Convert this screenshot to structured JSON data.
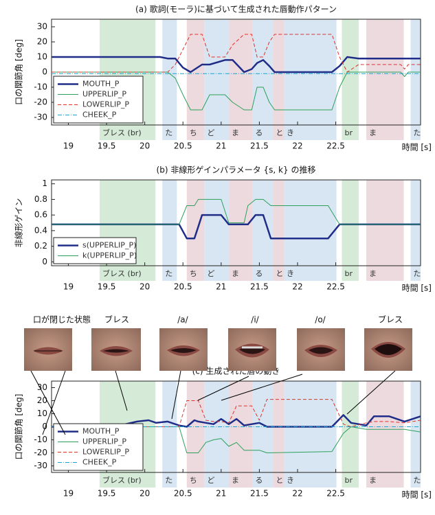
{
  "chart_data": [
    {
      "type": "line",
      "title": "(a) 歌詞(モーラ)に基づいて生成された唇動作パターン",
      "ylabel": "口の関節角 [deg]",
      "xlabel": "時間 [s]",
      "xlim": [
        18.78,
        23.61
      ],
      "ylim": [
        -35,
        35
      ],
      "xticks": [
        19,
        19.5,
        20,
        20.5,
        21,
        21.5,
        22,
        22.5
      ],
      "yticks": [
        30,
        20,
        10,
        0,
        -10,
        -20,
        -30
      ],
      "legend": "lower left",
      "grid": false,
      "segments": [
        {
          "start": 19.41,
          "end": 20.14,
          "label": "ブレス (br)",
          "color": "#d5ead7"
        },
        {
          "start": 20.23,
          "end": 20.42,
          "label": "た",
          "color": "#d7e6f2"
        },
        {
          "start": 20.55,
          "end": 20.78,
          "label": "ち",
          "color": "#ecdadf"
        },
        {
          "start": 20.78,
          "end": 21.1,
          "label": "ど",
          "color": "#d7e6f2"
        },
        {
          "start": 21.1,
          "end": 21.41,
          "label": "ま",
          "color": "#ecdadf"
        },
        {
          "start": 21.41,
          "end": 21.68,
          "label": "る",
          "color": "#d7e6f2"
        },
        {
          "start": 21.68,
          "end": 21.82,
          "label": "と",
          "color": "#ecdadf"
        },
        {
          "start": 21.82,
          "end": 22.51,
          "label": "き",
          "color": "#d7e6f2"
        },
        {
          "start": 22.58,
          "end": 22.8,
          "label": "br",
          "color": "#d5ead7"
        },
        {
          "start": 22.9,
          "end": 23.39,
          "label": "ま",
          "color": "#ecdadf"
        },
        {
          "start": 23.48,
          "end": 23.61,
          "label": "た",
          "color": "#d7e6f2"
        }
      ],
      "x": [
        18.78,
        20.2,
        20.3,
        20.4,
        20.5,
        20.6,
        20.75,
        20.85,
        21.05,
        21.15,
        21.3,
        21.4,
        21.47,
        21.55,
        21.63,
        21.7,
        22.45,
        22.55,
        22.65,
        22.8,
        23.35,
        23.4,
        23.45,
        23.61
      ],
      "series": [
        {
          "name": "MOUTH_P",
          "color": "#1f2d88",
          "linestyle": "solid",
          "linewidth": 2.5,
          "values": [
            10,
            10,
            9,
            9,
            3,
            0,
            5,
            5,
            8,
            8,
            0,
            2,
            6,
            8,
            4,
            0,
            0,
            4,
            10,
            9,
            9,
            9,
            9,
            9
          ]
        },
        {
          "name": "UPPERLIP_P",
          "color": "#2ca05a",
          "linestyle": "solid",
          "linewidth": 1,
          "values": [
            0,
            0,
            0,
            -4,
            -15,
            -25,
            -25,
            -15,
            -15,
            -20,
            -25,
            -25,
            -10,
            -10,
            -20,
            -25,
            -25,
            -10,
            0,
            0,
            0,
            -3,
            0,
            0
          ]
        },
        {
          "name": "LOWERLIP_P",
          "color": "#e0302a",
          "linestyle": "dashed",
          "linewidth": 1,
          "values": [
            0,
            0,
            0,
            5,
            15,
            25,
            25,
            10,
            10,
            18,
            25,
            25,
            10,
            10,
            20,
            25,
            25,
            10,
            0,
            5,
            5,
            2,
            5,
            5
          ]
        },
        {
          "name": "CHEEK_P",
          "color": "#1aa3d0",
          "linestyle": "dashdot",
          "linewidth": 1,
          "values": [
            -1,
            -1,
            -1,
            -1,
            -1,
            -1,
            -1,
            -1,
            -1,
            -1,
            -1,
            -1,
            -1,
            -1,
            -1,
            -1,
            -1,
            -1,
            -1,
            -1,
            -1,
            -1,
            -1,
            -1
          ]
        }
      ]
    },
    {
      "type": "line",
      "title": "(b) 非線形ゲインパラメータ {s, k} の推移",
      "ylabel": "非線形ゲイン",
      "xlabel": "時間 [s]",
      "xlim": [
        18.78,
        23.61
      ],
      "ylim": [
        -0.05,
        1.05
      ],
      "xticks": [
        19,
        19.5,
        20,
        20.5,
        21,
        21.5,
        22,
        22.5
      ],
      "yticks": [
        0,
        0.2,
        0.4,
        0.6,
        0.8,
        1
      ],
      "legend": "lower left",
      "grid": false,
      "segments": [
        {
          "start": 19.41,
          "end": 20.14,
          "label": "ブレス (br)",
          "color": "#d5ead7"
        },
        {
          "start": 20.23,
          "end": 20.42,
          "label": "た",
          "color": "#d7e6f2"
        },
        {
          "start": 20.55,
          "end": 20.78,
          "label": "ち",
          "color": "#ecdadf"
        },
        {
          "start": 20.78,
          "end": 21.1,
          "label": "ど",
          "color": "#d7e6f2"
        },
        {
          "start": 21.1,
          "end": 21.41,
          "label": "ま",
          "color": "#ecdadf"
        },
        {
          "start": 21.41,
          "end": 21.68,
          "label": "る",
          "color": "#d7e6f2"
        },
        {
          "start": 21.68,
          "end": 21.82,
          "label": "と",
          "color": "#ecdadf"
        },
        {
          "start": 21.82,
          "end": 22.51,
          "label": "き",
          "color": "#d7e6f2"
        },
        {
          "start": 22.58,
          "end": 22.8,
          "label": "br",
          "color": "#d5ead7"
        },
        {
          "start": 22.9,
          "end": 23.39,
          "label": "ま",
          "color": "#ecdadf"
        },
        {
          "start": 23.48,
          "end": 23.61,
          "label": "た",
          "color": "#d7e6f2"
        }
      ],
      "x": [
        18.78,
        20.45,
        20.55,
        20.65,
        20.7,
        20.75,
        21.0,
        21.1,
        21.3,
        21.35,
        21.45,
        21.55,
        21.65,
        22.4,
        22.55,
        23.61
      ],
      "series": [
        {
          "name": "s(UPPERLIP_P)",
          "color": "#1f2d88",
          "linestyle": "solid",
          "linewidth": 2.5,
          "values": [
            0.48,
            0.48,
            0.3,
            0.3,
            0.45,
            0.6,
            0.6,
            0.48,
            0.48,
            0.48,
            0.6,
            0.6,
            0.3,
            0.3,
            0.48,
            0.48
          ]
        },
        {
          "name": "k(UPPERLIP_P)",
          "color": "#2ca05a",
          "linestyle": "solid",
          "linewidth": 1,
          "values": [
            0.48,
            0.48,
            0.72,
            0.72,
            0.8,
            0.8,
            0.8,
            0.5,
            0.5,
            0.72,
            0.8,
            0.8,
            0.72,
            0.72,
            0.48,
            0.48
          ]
        }
      ]
    },
    {
      "type": "line",
      "title": "(c) 生成された唇の動き",
      "ylabel": "口の関節角 [deg]",
      "xlabel": "時間 [s]",
      "image_labels": [
        "口が閉じた状態",
        "ブレス",
        "/a/",
        "/i/",
        "/o/",
        "ブレス"
      ],
      "xlim": [
        18.78,
        23.61
      ],
      "ylim": [
        -35,
        35
      ],
      "xticks": [
        19,
        19.5,
        20,
        20.5,
        21,
        21.5,
        22,
        22.5
      ],
      "yticks": [
        30,
        20,
        10,
        0,
        -10,
        -20,
        -30
      ],
      "legend": "lower left",
      "grid": false,
      "segments": [
        {
          "start": 19.41,
          "end": 20.14,
          "label": "ブレス (br)",
          "color": "#d5ead7"
        },
        {
          "start": 20.23,
          "end": 20.42,
          "label": "た",
          "color": "#d7e6f2"
        },
        {
          "start": 20.55,
          "end": 20.78,
          "label": "ち",
          "color": "#ecdadf"
        },
        {
          "start": 20.78,
          "end": 21.1,
          "label": "ど",
          "color": "#d7e6f2"
        },
        {
          "start": 21.1,
          "end": 21.41,
          "label": "ま",
          "color": "#ecdadf"
        },
        {
          "start": 21.41,
          "end": 21.68,
          "label": "る",
          "color": "#d7e6f2"
        },
        {
          "start": 21.68,
          "end": 21.82,
          "label": "と",
          "color": "#ecdadf"
        },
        {
          "start": 21.82,
          "end": 22.51,
          "label": "き",
          "color": "#d7e6f2"
        },
        {
          "start": 22.58,
          "end": 22.8,
          "label": "br",
          "color": "#d5ead7"
        },
        {
          "start": 22.9,
          "end": 23.39,
          "label": "ま",
          "color": "#ecdadf"
        },
        {
          "start": 23.48,
          "end": 23.61,
          "label": "た",
          "color": "#d7e6f2"
        }
      ],
      "x": [
        18.78,
        19.6,
        19.9,
        20.05,
        20.15,
        20.3,
        20.45,
        20.55,
        20.65,
        20.7,
        20.8,
        20.9,
        21.0,
        21.1,
        21.2,
        21.3,
        21.4,
        21.5,
        21.6,
        22.45,
        22.6,
        22.7,
        22.9,
        23.0,
        23.2,
        23.4,
        23.61
      ],
      "series": [
        {
          "name": "MOUTH_P",
          "color": "#1f2d88",
          "linestyle": "solid",
          "linewidth": 2.5,
          "values": [
            0,
            0,
            4,
            5,
            3,
            4,
            1,
            0,
            5,
            4,
            3,
            2,
            6,
            2,
            6,
            1,
            2,
            3,
            0,
            0,
            9,
            3,
            1,
            8,
            8,
            4,
            8
          ]
        },
        {
          "name": "UPPERLIP_P",
          "color": "#2ca05a",
          "linestyle": "solid",
          "linewidth": 1,
          "values": [
            0,
            0,
            0,
            0,
            0,
            0,
            0,
            -20,
            -20,
            -20,
            -12,
            -10,
            -9,
            -15,
            -12,
            -18,
            -18,
            -18,
            -20,
            -19,
            -5,
            0,
            -2,
            -2,
            -2,
            -2,
            -4
          ]
        },
        {
          "name": "LOWERLIP_P",
          "color": "#e0302a",
          "linestyle": "dashed",
          "linewidth": 1,
          "values": [
            0,
            0,
            0,
            0,
            0,
            0,
            0,
            20,
            20,
            20,
            5,
            4,
            4,
            3,
            16,
            16,
            16,
            5,
            21,
            21,
            2,
            0,
            3,
            4,
            4,
            3,
            5
          ]
        },
        {
          "name": "CHEEK_P",
          "color": "#1aa3d0",
          "linestyle": "dashdot",
          "linewidth": 1,
          "values": [
            0,
            0,
            0,
            0,
            0,
            0,
            0,
            0,
            0,
            0,
            0,
            0,
            0,
            0,
            0,
            0,
            0,
            0,
            0,
            0,
            0,
            0,
            0,
            0,
            0,
            0,
            0
          ]
        }
      ]
    }
  ]
}
